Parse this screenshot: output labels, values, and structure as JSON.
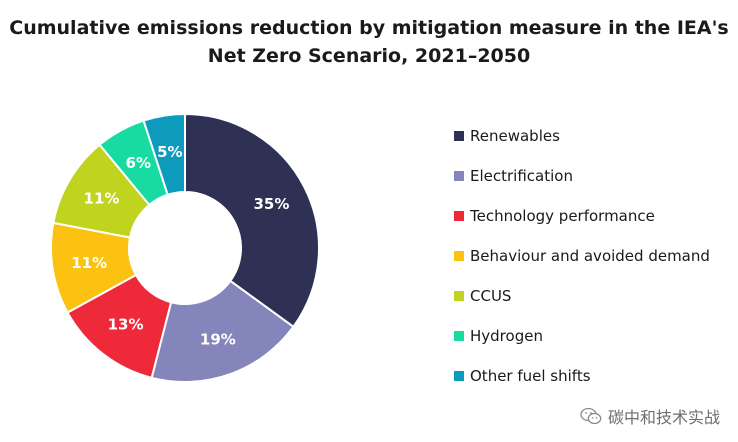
{
  "chart_data": {
    "type": "pie",
    "donut": true,
    "title": "Cumulative emissions reduction by mitigation measure in the IEA's Net Zero Scenario, 2021–2050",
    "title_lines": [
      "Cumulative emissions reduction by mitigation measure in the IEA's",
      "Net Zero Scenario, 2021–2050"
    ],
    "categories": [
      "Renewables",
      "Electrification",
      "Technology performance",
      "Behaviour and avoided demand",
      "CCUS",
      "Hydrogen",
      "Other fuel shifts"
    ],
    "values": [
      35,
      19,
      13,
      11,
      11,
      6,
      5
    ],
    "value_labels": [
      "35%",
      "19%",
      "13%",
      "11%",
      "11%",
      "6%",
      "5%"
    ],
    "colors": [
      "#2e3153",
      "#8486bb",
      "#ee2939",
      "#fbc211",
      "#bfd31f",
      "#18dba1",
      "#0d9bbd"
    ],
    "legend_position": "right"
  },
  "watermark": {
    "text": "碳中和技术实战",
    "icon": "wechat-icon"
  }
}
